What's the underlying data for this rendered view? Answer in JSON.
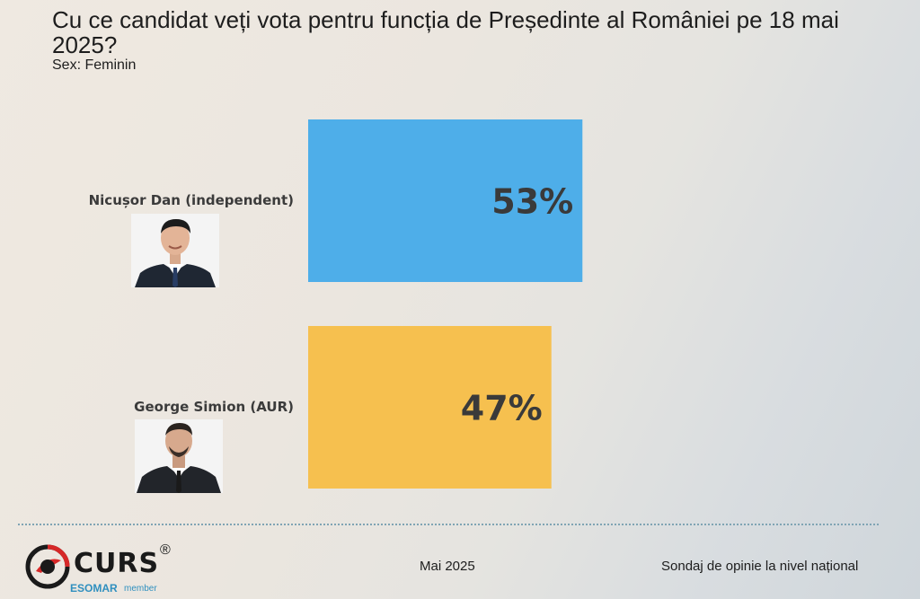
{
  "header": {
    "title": "Cu ce candidat veți vota pentru funcția de Președinte al României pe 18 mai 2025?",
    "subtitle": "Sex: Feminin"
  },
  "chart_data": {
    "type": "bar",
    "orientation": "horizontal",
    "title": "Cu ce candidat veți vota pentru funcția de Președinte al României pe 18 mai 2025?",
    "subtitle": "Sex: Feminin",
    "categories": [
      "Nicușor Dan (independent)",
      "George Simion (AUR)"
    ],
    "values": [
      53,
      47
    ],
    "value_labels": [
      "53%",
      "47%"
    ],
    "colors": [
      "#4eaee9",
      "#f6c04f"
    ],
    "unit": "%",
    "xlim": [
      0,
      100
    ],
    "grid": false,
    "legend": "none"
  },
  "candidates": [
    {
      "name": "Nicușor Dan (independent)",
      "portrait": "man-portrait-icon"
    },
    {
      "name": "George Simion (AUR)",
      "portrait": "man-portrait-icon"
    }
  ],
  "footer": {
    "logo_text": "CURS",
    "logo_registered": "®",
    "logo_esomar": "ESOMAR",
    "logo_member": "member",
    "date": "Mai 2025",
    "note": "Sondaj de opinie la nivel național"
  }
}
